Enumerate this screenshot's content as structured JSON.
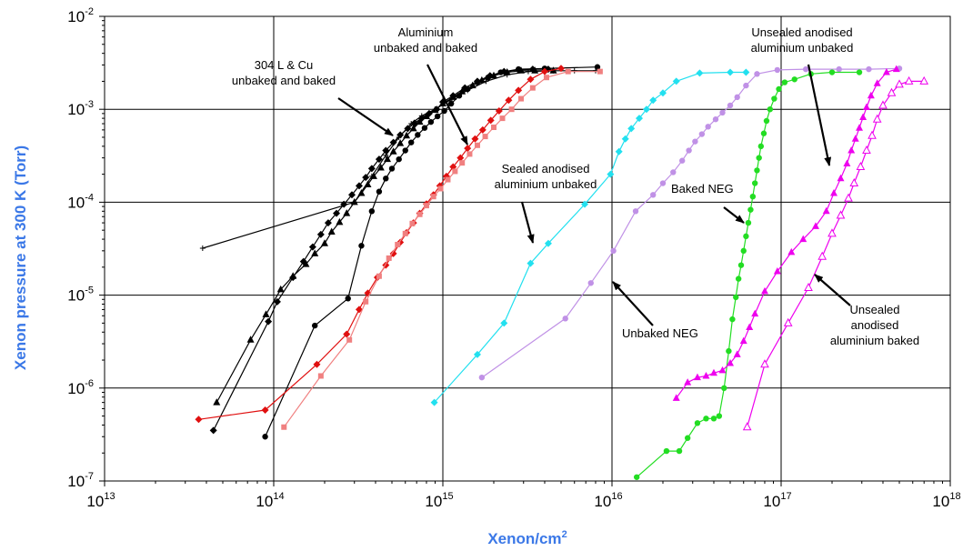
{
  "chart_data": {
    "type": "scatter",
    "title": "",
    "xlabel": "Xenon/cm",
    "xlabel_sup": "2",
    "ylabel": "Xenon pressure at 300 K (Torr)",
    "x_scale": "log",
    "y_scale": "log",
    "xlim": [
      10000000000000.0,
      1e+18
    ],
    "ylim": [
      1e-07,
      0.01
    ],
    "grid": true,
    "legend": "none",
    "x_ticks": [
      {
        "base": "10",
        "exp": "13"
      },
      {
        "base": "10",
        "exp": "14"
      },
      {
        "base": "10",
        "exp": "15"
      },
      {
        "base": "10",
        "exp": "16"
      },
      {
        "base": "10",
        "exp": "17"
      },
      {
        "base": "10",
        "exp": "18"
      }
    ],
    "y_ticks": [
      {
        "base": "10",
        "exp": "-2"
      },
      {
        "base": "10",
        "exp": "-3"
      },
      {
        "base": "10",
        "exp": "-4"
      },
      {
        "base": "10",
        "exp": "-5"
      },
      {
        "base": "10",
        "exp": "-6"
      },
      {
        "base": "10",
        "exp": "-7"
      }
    ],
    "series": [
      {
        "color": "#000000",
        "marker": "plus",
        "x": [
          38000000000000.0,
          300000000000000.0,
          380000000000000.0,
          460000000000000.0,
          550000000000000.0,
          650000000000000.0,
          750000000000000.0,
          900000000000000.0,
          1100000000000000.0,
          1400000000000000.0,
          1800000000000000.0,
          2400000000000000.0,
          3200000000000000.0,
          4500000000000000.0,
          6000000000000000.0,
          8000000000000000.0
        ],
        "y": [
          3.2e-05,
          0.0001,
          0.00019,
          0.00032,
          0.0005,
          0.0007,
          0.00085,
          0.001,
          0.00125,
          0.0016,
          0.002,
          0.00235,
          0.00255,
          0.0026,
          0.0026,
          0.0026
        ]
      },
      {
        "color": "#000000",
        "marker": "triangle",
        "x": [
          46000000000000.0,
          73000000000000.0,
          90000000000000.0,
          110000000000000.0,
          130000000000000.0,
          155000000000000.0,
          175000000000000.0,
          200000000000000.0,
          220000000000000.0,
          245000000000000.0,
          270000000000000.0,
          300000000000000.0,
          330000000000000.0,
          360000000000000.0,
          390000000000000.0,
          430000000000000.0,
          470000000000000.0,
          510000000000000.0,
          560000000000000.0,
          610000000000000.0,
          670000000000000.0,
          730000000000000.0,
          800000000000000.0,
          900000000000000.0,
          1000000000000000.0,
          1150000000000000.0,
          1300000000000000.0,
          1500000000000000.0,
          1700000000000000.0,
          2000000000000000.0,
          2400000000000000.0,
          2900000000000000.0,
          3500000000000000.0,
          4500000000000000.0
        ],
        "y": [
          7e-07,
          3.3e-06,
          6.2e-06,
          1.15e-05,
          1.6e-05,
          2.15e-05,
          2.8e-05,
          3.6e-05,
          4.8e-05,
          6.1e-05,
          7.6e-05,
          0.0001,
          0.000125,
          0.000155,
          0.00019,
          0.000235,
          0.00029,
          0.00035,
          0.00043,
          0.00052,
          0.00062,
          0.00073,
          0.00084,
          0.00098,
          0.00115,
          0.00135,
          0.00155,
          0.0018,
          0.00205,
          0.0023,
          0.0025,
          0.0026,
          0.0026,
          0.0026
        ]
      },
      {
        "color": "#000000",
        "marker": "diamond",
        "x": [
          44000000000000.0,
          93000000000000.0,
          105000000000000.0,
          130000000000000.0,
          150000000000000.0,
          170000000000000.0,
          190000000000000.0,
          210000000000000.0,
          235000000000000.0,
          260000000000000.0,
          290000000000000.0,
          320000000000000.0,
          350000000000000.0,
          380000000000000.0,
          420000000000000.0,
          460000000000000.0,
          510000000000000.0,
          560000000000000.0,
          620000000000000.0,
          680000000000000.0,
          750000000000000.0,
          830000000000000.0,
          920000000000000.0,
          1000000000000000.0,
          1150000000000000.0,
          1350000000000000.0,
          1600000000000000.0,
          1900000000000000.0,
          2300000000000000.0,
          2800000000000000.0,
          3400000000000000.0,
          4200000000000000.0
        ],
        "y": [
          3.5e-07,
          5.2e-06,
          8.5e-06,
          1.55e-05,
          2.3e-05,
          3.3e-05,
          4.5e-05,
          6e-05,
          7.6e-05,
          9.5e-05,
          0.00012,
          0.00015,
          0.000185,
          0.00023,
          0.00029,
          0.00036,
          0.00044,
          0.00053,
          0.00062,
          0.00071,
          0.0008,
          0.0009,
          0.001,
          0.0012,
          0.0014,
          0.0017,
          0.002,
          0.0023,
          0.00255,
          0.00265,
          0.0027,
          0.0027
        ]
      },
      {
        "color": "#000000",
        "marker": "circle",
        "x": [
          89000000000000.0,
          175000000000000.0,
          275000000000000.0,
          330000000000000.0,
          380000000000000.0,
          420000000000000.0,
          460000000000000.0,
          500000000000000.0,
          550000000000000.0,
          600000000000000.0,
          650000000000000.0,
          710000000000000.0,
          780000000000000.0,
          850000000000000.0,
          930000000000000.0,
          1020000000000000.0,
          1120000000000000.0,
          1250000000000000.0,
          1400000000000000.0,
          1600000000000000.0,
          1850000000000000.0,
          2200000000000000.0,
          2800000000000000.0,
          4000000000000000.0,
          8200000000000000.0
        ],
        "y": [
          3e-07,
          4.7e-06,
          9.2e-06,
          3.4e-05,
          8e-05,
          0.00013,
          0.00018,
          0.00023,
          0.00029,
          0.00036,
          0.00044,
          0.00053,
          0.00063,
          0.00073,
          0.00084,
          0.00096,
          0.00115,
          0.0014,
          0.00165,
          0.00195,
          0.0022,
          0.0025,
          0.0027,
          0.00275,
          0.00285
        ]
      },
      {
        "color": "#e01010",
        "marker": "diamond",
        "x": [
          36000000000000.0,
          89000000000000.0,
          180000000000000.0,
          270000000000000.0,
          320000000000000.0,
          360000000000000.0,
          410000000000000.0,
          460000000000000.0,
          510000000000000.0,
          560000000000000.0,
          610000000000000.0,
          670000000000000.0,
          730000000000000.0,
          800000000000000.0,
          880000000000000.0,
          960000000000000.0,
          1050000000000000.0,
          1150000000000000.0,
          1270000000000000.0,
          1400000000000000.0,
          1550000000000000.0,
          1720000000000000.0,
          1920000000000000.0,
          2150000000000000.0,
          2450000000000000.0,
          2800000000000000.0,
          3300000000000000.0,
          4000000000000000.0,
          5000000000000000.0
        ],
        "y": [
          4.6e-07,
          5.8e-07,
          1.8e-06,
          3.8e-06,
          7e-06,
          1.05e-05,
          1.55e-05,
          2.1e-05,
          2.8e-05,
          3.7e-05,
          4.7e-05,
          6e-05,
          7.6e-05,
          9.6e-05,
          0.00012,
          0.00015,
          0.00019,
          0.00024,
          0.0003,
          0.00038,
          0.00048,
          0.0006,
          0.00076,
          0.00096,
          0.00125,
          0.0016,
          0.0021,
          0.00255,
          0.00275
        ]
      },
      {
        "color": "#f08080",
        "marker": "square",
        "x": [
          115000000000000.0,
          190000000000000.0,
          280000000000000.0,
          350000000000000.0,
          420000000000000.0,
          480000000000000.0,
          540000000000000.0,
          600000000000000.0,
          660000000000000.0,
          730000000000000.0,
          800000000000000.0,
          880000000000000.0,
          970000000000000.0,
          1070000000000000.0,
          1180000000000000.0,
          1300000000000000.0,
          1440000000000000.0,
          1600000000000000.0,
          1780000000000000.0,
          2000000000000000.0,
          2250000000000000.0,
          2550000000000000.0,
          2900000000000000.0,
          3400000000000000.0,
          4100000000000000.0,
          5500000000000000.0,
          8500000000000000.0
        ],
        "y": [
          3.8e-07,
          1.35e-06,
          3.3e-06,
          8.5e-06,
          1.6e-05,
          2.5e-05,
          3.5e-05,
          4.6e-05,
          5.9e-05,
          7.4e-05,
          9.2e-05,
          0.000115,
          0.00014,
          0.000175,
          0.000215,
          0.000265,
          0.00033,
          0.00041,
          0.00051,
          0.00064,
          0.0008,
          0.001,
          0.0013,
          0.0017,
          0.0022,
          0.00255,
          0.00255
        ]
      },
      {
        "color": "#22e0ef",
        "marker": "diamond",
        "x": [
          890000000000000.0,
          1600000000000000.0,
          2300000000000000.0,
          3300000000000000.0,
          4200000000000000.0,
          6900000000000000.0,
          9800000000000000.0,
          1.1e+16,
          1.2e+16,
          1.3e+16,
          1.45e+16,
          1.6e+16,
          1.75e+16,
          2e+16,
          2.4e+16,
          3.3e+16,
          5e+16,
          6.2e+16
        ],
        "y": [
          7e-07,
          2.3e-06,
          5e-06,
          2.2e-05,
          3.6e-05,
          9.5e-05,
          0.0002,
          0.00035,
          0.00048,
          0.00062,
          0.0008,
          0.001,
          0.00125,
          0.0015,
          0.002,
          0.00245,
          0.0025,
          0.0025
        ]
      },
      {
        "color": "#c091e6",
        "marker": "circle",
        "x": [
          1700000000000000.0,
          5300000000000000.0,
          7500000000000000.0,
          1.02e+16,
          1.38e+16,
          1.75e+16,
          2e+16,
          2.3e+16,
          2.6e+16,
          2.85e+16,
          3.1e+16,
          3.4e+16,
          3.7e+16,
          4.1e+16,
          4.5e+16,
          5e+16,
          5.5e+16,
          6.2e+16,
          7.2e+16,
          9.5e+16,
          1.4e+17,
          2.2e+17,
          3.3e+17,
          5e+17
        ],
        "y": [
          1.3e-06,
          5.6e-06,
          1.35e-05,
          3e-05,
          8e-05,
          0.00012,
          0.00016,
          0.00021,
          0.00028,
          0.00036,
          0.00045,
          0.00054,
          0.00065,
          0.00078,
          0.00092,
          0.0011,
          0.00135,
          0.0018,
          0.0024,
          0.00265,
          0.0027,
          0.0027,
          0.0027,
          0.00275
        ]
      },
      {
        "color": "#22dd22",
        "marker": "circle",
        "x": [
          1.4e+16,
          2.1e+16,
          2.5e+16,
          2.8e+16,
          3.2e+16,
          3.6e+16,
          4e+16,
          4.3e+16,
          4.6e+16,
          4.9e+16,
          5.15e+16,
          5.4e+16,
          5.6e+16,
          5.8e+16,
          6e+16,
          6.2e+16,
          6.4e+16,
          6.6e+16,
          6.8e+16,
          7e+16,
          7.2e+16,
          7.4e+16,
          7.6e+16,
          7.9e+16,
          8.2e+16,
          8.6e+16,
          9.1e+16,
          9.7e+16,
          1.05e+17,
          1.2e+17,
          1.5e+17,
          2e+17,
          2.9e+17
        ],
        "y": [
          1.1e-07,
          2.1e-07,
          2.1e-07,
          2.9e-07,
          4.2e-07,
          4.7e-07,
          4.7e-07,
          5e-07,
          1e-06,
          2.5e-06,
          5.5e-06,
          9.5e-06,
          1.5e-05,
          2.1e-05,
          3e-05,
          4.3e-05,
          6e-05,
          8.3e-05,
          0.000115,
          0.00016,
          0.00022,
          0.0003,
          0.0004,
          0.00055,
          0.00075,
          0.001,
          0.0013,
          0.00165,
          0.00195,
          0.0021,
          0.0024,
          0.0025,
          0.0025
        ]
      },
      {
        "color": "#ee00ee",
        "marker": "triangle",
        "x": [
          2.4e+16,
          2.8e+16,
          3.2e+16,
          3.6e+16,
          4e+16,
          4.5e+16,
          5e+16,
          5.5e+16,
          6e+16,
          6.5e+16,
          7e+16,
          8e+16,
          9.5e+16,
          1.15e+17,
          1.35e+17,
          1.6e+17,
          1.85e+17,
          2.05e+17,
          2.25e+17,
          2.45e+17,
          2.6e+17,
          2.75e+17,
          2.9e+17,
          3.05e+17,
          3.2e+17,
          3.4e+17,
          3.7e+17,
          4.2e+17,
          4.8e+17
        ],
        "y": [
          7.8e-07,
          1.15e-06,
          1.3e-06,
          1.35e-06,
          1.45e-06,
          1.55e-06,
          1.85e-06,
          2.3e-06,
          3.2e-06,
          4.5e-06,
          6.3e-06,
          1.1e-05,
          1.8e-05,
          2.9e-05,
          4e-05,
          5.5e-05,
          8e-05,
          0.000125,
          0.00018,
          0.00026,
          0.00036,
          0.00048,
          0.00063,
          0.00082,
          0.00105,
          0.0014,
          0.0019,
          0.0025,
          0.0027
        ]
      },
      {
        "color": "#ee00ee",
        "marker": "triangle-open",
        "x": [
          6.3e+16,
          8e+16,
          1.1e+17,
          1.45e+17,
          1.75e+17,
          2e+17,
          2.25e+17,
          2.5e+17,
          2.7e+17,
          2.95e+17,
          3.2e+17,
          3.45e+17,
          3.7e+17,
          4e+17,
          4.5e+17,
          5e+17,
          5.7e+17,
          7e+17
        ],
        "y": [
          3.8e-07,
          1.8e-06,
          5e-06,
          1.2e-05,
          2.6e-05,
          4.6e-05,
          7.2e-05,
          0.00011,
          0.00016,
          0.00024,
          0.00036,
          0.00052,
          0.00078,
          0.0011,
          0.0015,
          0.00185,
          0.002,
          0.002
        ]
      }
    ],
    "annotations": [
      {
        "lines": [
          "304 L & Cu",
          "unbaked and baked"
        ]
      },
      {
        "lines": [
          "Aluminium",
          "unbaked and baked"
        ]
      },
      {
        "lines": [
          "Sealed anodised",
          "aluminium unbaked"
        ]
      },
      {
        "lines": [
          "Unsealed anodised",
          "aluminium unbaked"
        ]
      },
      {
        "lines": [
          "Baked NEG"
        ]
      },
      {
        "lines": [
          "Unbaked NEG"
        ]
      },
      {
        "lines": [
          "Unsealed",
          "anodised",
          "aluminium baked"
        ]
      }
    ]
  }
}
